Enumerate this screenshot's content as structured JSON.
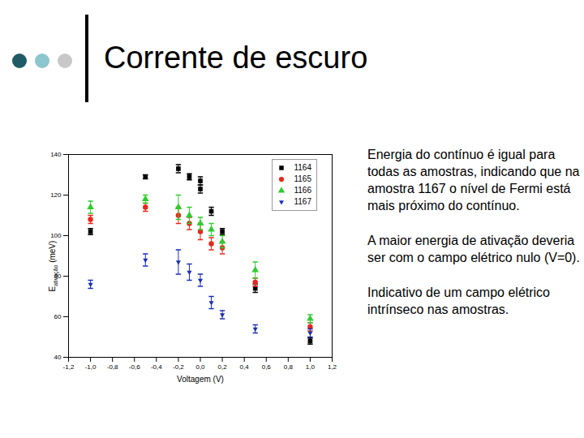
{
  "slide": {
    "title": "Corrente de escuro",
    "notes": [
      "Energia do contínuo é igual para todas as amostras, indicando que na amostra 1167 o nível de Fermi está mais próximo do contínuo.",
      "A maior energia de ativação deveria ser com o campo elétrico nulo (V=0).",
      "Indicativo de um campo elétrico intrínseco nas amostras."
    ]
  },
  "chart_data": {
    "type": "scatter",
    "x_label": "Voltagem (V)",
    "y_label": "E",
    "y_label_subscript": "ativação",
    "y_label_unit": "(meV)",
    "xlim": [
      -1.2,
      1.2
    ],
    "xticks": [
      {
        "value": -1.2,
        "label": "-1,2"
      },
      {
        "value": -1.0,
        "label": "-1,0"
      },
      {
        "value": -0.8,
        "label": "-0,8"
      },
      {
        "value": -0.6,
        "label": "-0,6"
      },
      {
        "value": -0.4,
        "label": "-0,4"
      },
      {
        "value": -0.2,
        "label": "-0,2"
      },
      {
        "value": 0,
        "label": "0,0"
      },
      {
        "value": 0.2,
        "label": "0,2"
      },
      {
        "value": 0.4,
        "label": "0,4"
      },
      {
        "value": 0.6,
        "label": "0,6"
      },
      {
        "value": 0.8,
        "label": "0,8"
      },
      {
        "value": 1.0,
        "label": "1,0"
      },
      {
        "value": 1.2,
        "label": "1,2"
      }
    ],
    "ylim": [
      40,
      140
    ],
    "yticks": [
      40,
      60,
      80,
      100,
      120,
      140
    ],
    "grid": false,
    "legend": "top-right",
    "series": [
      {
        "name": "1164",
        "color": "#000000",
        "marker": "square",
        "x": [
          -1.0,
          -0.5,
          -0.2,
          -0.1,
          0.0,
          0.0,
          0.1,
          0.2,
          0.5,
          1.0
        ],
        "values": [
          102,
          129,
          133,
          129,
          127,
          123,
          112,
          102,
          74,
          48
        ],
        "errors": [
          1.5,
          1,
          2,
          1.5,
          2,
          2,
          2,
          1.5,
          2,
          1.5
        ]
      },
      {
        "name": "1165",
        "color": "#e8261c",
        "marker": "circle",
        "x": [
          -1.0,
          -0.5,
          -0.2,
          -0.1,
          0.0,
          0.1,
          0.2,
          0.5,
          1.0
        ],
        "values": [
          108,
          114,
          110,
          106,
          102,
          96,
          94,
          77,
          55
        ],
        "errors": [
          2,
          2,
          4,
          3,
          4,
          3,
          3,
          2,
          2
        ]
      },
      {
        "name": "1166",
        "color": "#2ecc2e",
        "marker": "triangle",
        "x": [
          -1.0,
          -0.5,
          -0.2,
          -0.1,
          0.0,
          0.1,
          0.2,
          0.5,
          1.0
        ],
        "values": [
          114,
          118,
          114,
          110,
          106,
          103,
          97,
          83,
          59
        ],
        "errors": [
          3,
          2,
          6,
          4,
          3,
          3,
          3,
          4,
          2
        ]
      },
      {
        "name": "1167",
        "color": "#1a2fb8",
        "marker": "triangle-down",
        "x": [
          -1.0,
          -0.5,
          -0.2,
          -0.1,
          0.0,
          0.1,
          0.2,
          0.5,
          1.0
        ],
        "values": [
          76,
          88,
          87,
          82,
          78,
          67,
          61,
          54,
          52
        ],
        "errors": [
          2,
          3,
          6,
          4,
          3,
          3,
          2,
          2,
          2
        ]
      }
    ]
  }
}
